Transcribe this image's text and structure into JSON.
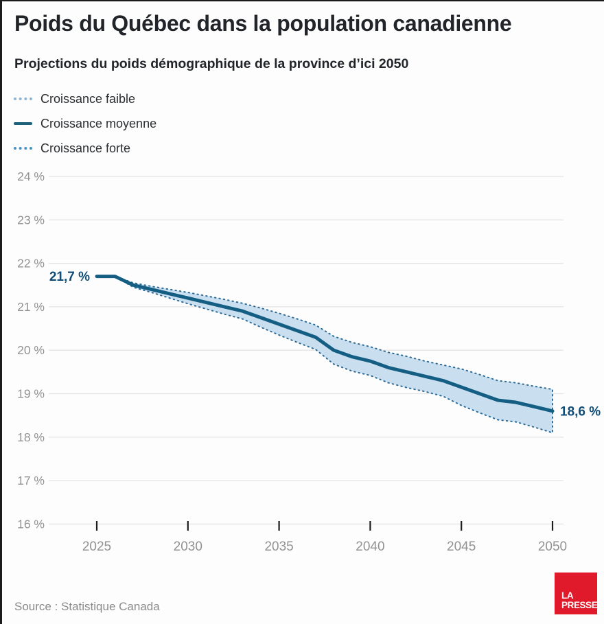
{
  "header": {
    "title": "Poids du Québec dans la population canadienne",
    "subtitle": "Projections du poids démographique de la province d’ici 2050"
  },
  "legend": {
    "items": [
      {
        "label": "Croissance faible",
        "style": "dotted",
        "color": "#8fb7cf"
      },
      {
        "label": "Croissance moyenne",
        "style": "solid",
        "color": "#1d6278"
      },
      {
        "label": "Croissance forte",
        "style": "dotted",
        "color": "#4a93c3"
      }
    ]
  },
  "colors": {
    "line_moyenne": "#155e83",
    "line_dotted": "#2d6b96",
    "band_fill": "#c9dff0",
    "annotation": "#0f4c77",
    "grid": "#e4e4e4",
    "axis_text": "#929292",
    "tick": "#1c1c1c",
    "logo_bg": "#e11a2b"
  },
  "chart_data": {
    "type": "line",
    "title": "Poids du Québec dans la population canadienne",
    "subtitle": "Projections du poids démographique de la province d’ici 2050",
    "xlabel": "",
    "ylabel": "",
    "x": [
      2025,
      2026,
      2027,
      2028,
      2029,
      2030,
      2031,
      2032,
      2033,
      2034,
      2035,
      2036,
      2037,
      2038,
      2039,
      2040,
      2041,
      2042,
      2043,
      2044,
      2045,
      2046,
      2047,
      2048,
      2049,
      2050
    ],
    "series": [
      {
        "name": "Croissance faible",
        "style": "dotted",
        "values": [
          21.7,
          21.7,
          21.55,
          21.47,
          21.4,
          21.33,
          21.25,
          21.17,
          21.08,
          20.97,
          20.85,
          20.72,
          20.58,
          20.32,
          20.18,
          20.08,
          19.95,
          19.86,
          19.75,
          19.66,
          19.57,
          19.44,
          19.3,
          19.25,
          19.17,
          19.1
        ]
      },
      {
        "name": "Croissance moyenne",
        "style": "solid",
        "values": [
          21.7,
          21.7,
          21.5,
          21.4,
          21.3,
          21.2,
          21.1,
          21.0,
          20.9,
          20.75,
          20.6,
          20.45,
          20.3,
          20.0,
          19.85,
          19.75,
          19.6,
          19.5,
          19.4,
          19.3,
          19.15,
          19.0,
          18.85,
          18.8,
          18.7,
          18.6
        ]
      },
      {
        "name": "Croissance forte",
        "style": "dotted",
        "values": [
          21.7,
          21.7,
          21.45,
          21.33,
          21.2,
          21.07,
          20.95,
          20.83,
          20.72,
          20.53,
          20.35,
          20.18,
          20.02,
          19.68,
          19.52,
          19.42,
          19.25,
          19.14,
          19.05,
          18.94,
          18.73,
          18.56,
          18.4,
          18.35,
          18.23,
          18.1
        ]
      }
    ],
    "band": {
      "between": [
        "Croissance faible",
        "Croissance forte"
      ]
    },
    "ylim": [
      16,
      24.5
    ],
    "yticks": [
      24,
      23,
      22,
      21,
      20,
      19,
      18,
      17,
      16
    ],
    "ytick_format": "{v} %",
    "xticks": [
      2025,
      2030,
      2035,
      2040,
      2045,
      2050
    ],
    "grid": true,
    "legend_position": "top-left",
    "annotations": [
      {
        "x": 2025,
        "y": 21.7,
        "text": "21,7 %"
      },
      {
        "x": 2050,
        "y": 18.6,
        "text": "18,6 %"
      }
    ]
  },
  "footer": {
    "source": "Source : Statistique Canada",
    "logo_lines": [
      "LA",
      "PRESSE"
    ]
  }
}
